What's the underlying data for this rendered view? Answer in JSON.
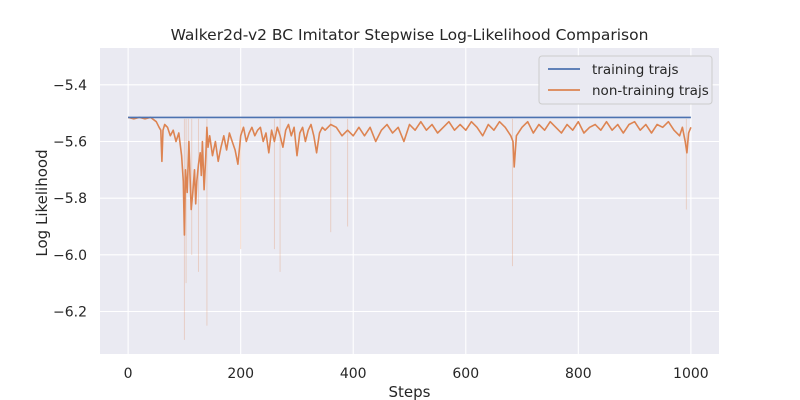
{
  "chart_data": {
    "type": "line",
    "title": "Walker2d-v2 BC Imitator Stepwise Log-Likelihood Comparison",
    "xlabel": "Steps",
    "ylabel": "Log Likelihood",
    "xlim": [
      -50,
      1050
    ],
    "ylim": [
      -6.35,
      -5.27
    ],
    "xticks": [
      0,
      200,
      400,
      600,
      800,
      1000
    ],
    "xtick_labels": [
      "0",
      "200",
      "400",
      "600",
      "800",
      "1000"
    ],
    "yticks": [
      -6.2,
      -6.0,
      -5.8,
      -5.6,
      -5.4
    ],
    "ytick_labels": [
      "−6.2",
      "−6.0",
      "−5.8",
      "−5.6",
      "−5.4"
    ],
    "grid": true,
    "legend_position": "top-right",
    "colors": {
      "background": "#eaeaf2",
      "grid": "#ffffff",
      "training": "#4c72b0",
      "non_training": "#dd8452"
    },
    "series": [
      {
        "name": "training trajs",
        "role": "training",
        "x": [
          0,
          1000
        ],
        "values": [
          -5.515,
          -5.515
        ]
      },
      {
        "name": "non-training trajs",
        "role": "non_training",
        "x": [
          0,
          10,
          20,
          30,
          40,
          50,
          55,
          58,
          60,
          62,
          65,
          70,
          75,
          80,
          85,
          90,
          95,
          98,
          100,
          102,
          105,
          108,
          110,
          112,
          115,
          118,
          120,
          122,
          125,
          128,
          130,
          132,
          135,
          138,
          140,
          142,
          145,
          150,
          155,
          160,
          165,
          170,
          175,
          180,
          185,
          190,
          195,
          200,
          205,
          210,
          215,
          220,
          225,
          230,
          235,
          240,
          245,
          250,
          255,
          260,
          265,
          270,
          275,
          280,
          285,
          290,
          295,
          300,
          305,
          310,
          315,
          320,
          325,
          330,
          335,
          340,
          345,
          350,
          360,
          370,
          380,
          390,
          400,
          410,
          420,
          430,
          440,
          450,
          460,
          470,
          480,
          490,
          500,
          510,
          520,
          530,
          540,
          550,
          560,
          570,
          580,
          590,
          600,
          610,
          620,
          630,
          640,
          650,
          660,
          670,
          680,
          684,
          686,
          690,
          700,
          710,
          720,
          730,
          740,
          750,
          760,
          770,
          780,
          790,
          800,
          810,
          820,
          830,
          840,
          850,
          860,
          870,
          880,
          890,
          900,
          910,
          920,
          930,
          940,
          950,
          960,
          970,
          980,
          985,
          990,
          993,
          996,
          1000
        ],
        "values": [
          -5.515,
          -5.52,
          -5.515,
          -5.52,
          -5.515,
          -5.53,
          -5.55,
          -5.56,
          -5.67,
          -5.56,
          -5.54,
          -5.55,
          -5.58,
          -5.56,
          -5.6,
          -5.57,
          -5.65,
          -5.74,
          -5.93,
          -5.7,
          -5.78,
          -5.6,
          -5.72,
          -5.84,
          -5.78,
          -5.7,
          -5.82,
          -5.74,
          -5.68,
          -5.64,
          -5.72,
          -5.6,
          -5.77,
          -5.65,
          -5.55,
          -5.62,
          -5.58,
          -5.65,
          -5.6,
          -5.67,
          -5.62,
          -5.58,
          -5.63,
          -5.57,
          -5.6,
          -5.63,
          -5.68,
          -5.58,
          -5.55,
          -5.6,
          -5.57,
          -5.55,
          -5.58,
          -5.56,
          -5.55,
          -5.6,
          -5.57,
          -5.64,
          -5.56,
          -5.6,
          -5.55,
          -5.58,
          -5.62,
          -5.56,
          -5.54,
          -5.58,
          -5.55,
          -5.65,
          -5.57,
          -5.55,
          -5.6,
          -5.56,
          -5.54,
          -5.58,
          -5.64,
          -5.57,
          -5.55,
          -5.56,
          -5.54,
          -5.55,
          -5.58,
          -5.56,
          -5.58,
          -5.55,
          -5.58,
          -5.55,
          -5.6,
          -5.56,
          -5.54,
          -5.57,
          -5.55,
          -5.6,
          -5.54,
          -5.56,
          -5.53,
          -5.56,
          -5.54,
          -5.57,
          -5.55,
          -5.53,
          -5.56,
          -5.54,
          -5.56,
          -5.53,
          -5.55,
          -5.58,
          -5.54,
          -5.56,
          -5.53,
          -5.55,
          -5.58,
          -5.6,
          -5.69,
          -5.58,
          -5.55,
          -5.53,
          -5.57,
          -5.54,
          -5.56,
          -5.53,
          -5.55,
          -5.57,
          -5.54,
          -5.56,
          -5.53,
          -5.57,
          -5.55,
          -5.54,
          -5.56,
          -5.53,
          -5.56,
          -5.54,
          -5.57,
          -5.54,
          -5.53,
          -5.56,
          -5.54,
          -5.57,
          -5.54,
          -5.55,
          -5.53,
          -5.56,
          -5.58,
          -5.55,
          -5.6,
          -5.64,
          -5.57,
          -5.55
        ],
        "faint_x": [
          100,
          103,
          107,
          113,
          125,
          140,
          200,
          260,
          270,
          360,
          390,
          683,
          992
        ],
        "faint_values": [
          -6.3,
          -6.1,
          -5.62,
          -6.0,
          -6.06,
          -6.25,
          -5.98,
          -5.98,
          -6.06,
          -5.92,
          -5.9,
          -6.04,
          -5.84
        ]
      }
    ]
  }
}
